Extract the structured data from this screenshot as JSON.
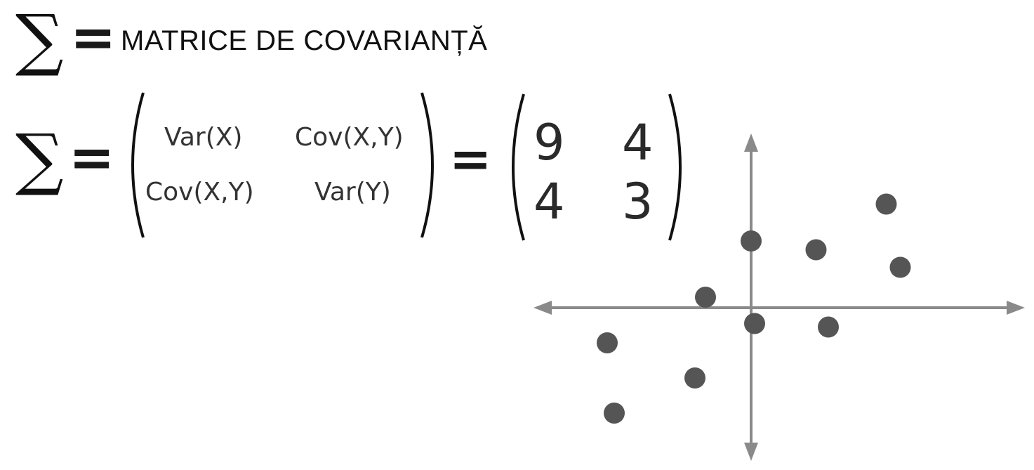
{
  "heading": {
    "symbol": "∑",
    "equals": "=",
    "title": "MATRICE DE COVARIANȚĂ"
  },
  "formula": {
    "symbol": "∑",
    "equals_1": "=",
    "equals_2": "=",
    "symbolic_matrix": [
      [
        "Var(X)",
        "Cov(X,Y)"
      ],
      [
        "Cov(X,Y)",
        "Var(Y)"
      ]
    ],
    "numeric_matrix": [
      [
        "9",
        "4"
      ],
      [
        "4",
        "3"
      ]
    ]
  },
  "scatter": {
    "point_color": "#555555",
    "axis_color": "#8a8a8a",
    "points": [
      [
        0.0,
        1.9
      ],
      [
        1.85,
        1.65
      ],
      [
        3.85,
        2.95
      ],
      [
        4.25,
        1.15
      ],
      [
        -1.3,
        0.3
      ],
      [
        0.1,
        -0.45
      ],
      [
        2.2,
        -0.55
      ],
      [
        -4.1,
        -1.0
      ],
      [
        -1.6,
        -2.0
      ],
      [
        -3.9,
        -3.0
      ]
    ]
  }
}
